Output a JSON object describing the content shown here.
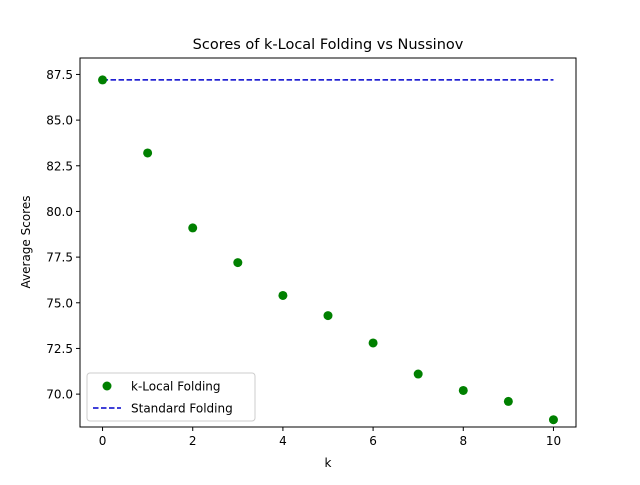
{
  "chart_data": {
    "type": "scatter",
    "title": "Scores of k-Local Folding vs Nussinov",
    "xlabel": "k",
    "ylabel": "Average Scores",
    "xlim": [
      -0.5,
      10.5
    ],
    "ylim": [
      68.2,
      88.4
    ],
    "xticks": [
      "0",
      "2",
      "4",
      "6",
      "8",
      "10"
    ],
    "xtick_values": [
      0,
      2,
      4,
      6,
      8,
      10
    ],
    "yticks": [
      "70.0",
      "72.5",
      "75.0",
      "77.5",
      "80.0",
      "82.5",
      "85.0",
      "87.5"
    ],
    "ytick_values": [
      70.0,
      72.5,
      75.0,
      77.5,
      80.0,
      82.5,
      85.0,
      87.5
    ],
    "grid": false,
    "legend_position": "lower-left",
    "series": [
      {
        "name": "k-Local Folding",
        "style": "markers",
        "color": "#008000",
        "x": [
          0,
          1,
          2,
          3,
          4,
          5,
          6,
          7,
          8,
          9,
          10
        ],
        "y": [
          87.2,
          83.2,
          79.1,
          77.2,
          75.4,
          74.3,
          72.8,
          71.1,
          70.2,
          69.6,
          68.6
        ]
      },
      {
        "name": "Standard Folding",
        "style": "dashed-line",
        "color": "#0000cc",
        "x": [
          0,
          10
        ],
        "y": [
          87.2,
          87.2
        ]
      }
    ]
  }
}
